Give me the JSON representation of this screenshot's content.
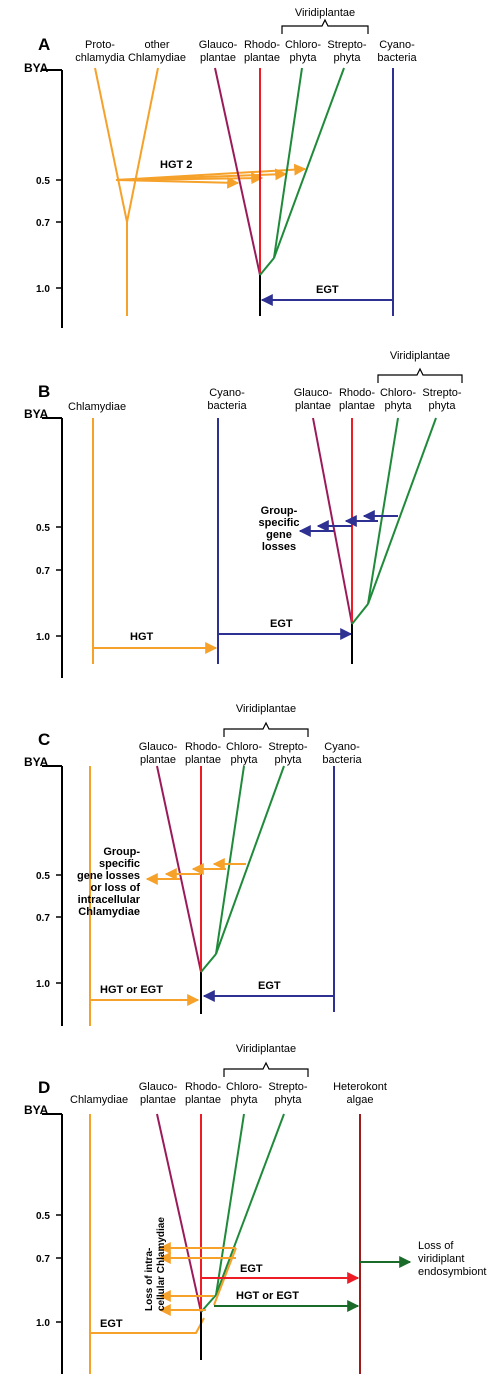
{
  "colors": {
    "chlamydiae": "#f5a12a",
    "glaucoplantae": "#9b1b5a",
    "rhodoplantae": "#ee1c24",
    "viridiplantae": "#1f8a3a",
    "cyanobacteria": "#2e3192",
    "heterokont": "#9e1b1b",
    "hgt_green": "#1a6b2a",
    "axis": "#000000"
  },
  "common": {
    "bya": "BYA",
    "ticks": [
      "0.5",
      "0.7",
      "1.0"
    ],
    "viridiplantae": "Viridiplantae",
    "glauco": [
      "Glauco-",
      "plantae"
    ],
    "rhodo": [
      "Rhodo-",
      "plantae"
    ],
    "chloro": [
      "Chloro-",
      "phyta"
    ],
    "strepto": [
      "Strepto-",
      "phyta"
    ],
    "cyano": [
      "Cyano-",
      "bacteria"
    ],
    "chlamydiae": "Chlamydiae"
  },
  "panelA": {
    "letter": "A",
    "proto": [
      "Proto-",
      "chlamydia"
    ],
    "other": [
      "other",
      "Chlamydiae"
    ],
    "hgt2": "HGT 2",
    "egt": "EGT"
  },
  "panelB": {
    "letter": "B",
    "losses": [
      "Group-",
      "specific",
      "gene",
      "losses"
    ],
    "hgt": "HGT",
    "egt": "EGT"
  },
  "panelC": {
    "letter": "C",
    "losses": [
      "Group-",
      "specific",
      "gene losses",
      "or loss of",
      "intracellular",
      "Chlamydiae"
    ],
    "hgt_or_egt": "HGT or EGT",
    "egt": "EGT"
  },
  "panelD": {
    "letter": "D",
    "heterokont": [
      "Heterokont",
      "algae"
    ],
    "loss_vertical": [
      "Loss of intra-",
      "cellular Chlamydiae"
    ],
    "egt_red": "EGT",
    "hgt_or_egt": "HGT or EGT",
    "egt_orange": "EGT",
    "loss_viridiplant": [
      "Loss of",
      "viridiplant",
      "endosymbiont"
    ]
  }
}
